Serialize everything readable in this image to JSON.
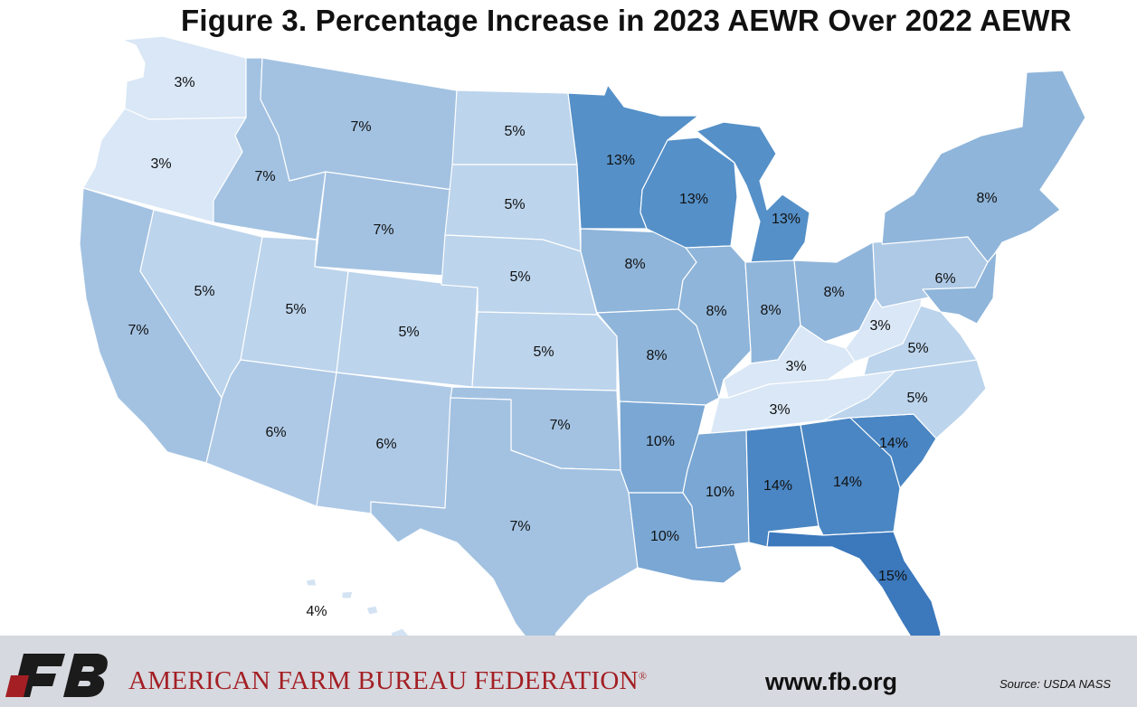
{
  "title": "Figure 3. Percentage Increase in 2023 AEWR Over 2022 AEWR",
  "colors": {
    "3": "#d9e7f6",
    "4": "#d3e3f3",
    "5": "#bcd4ec",
    "6": "#aec9e6",
    "7": "#a3c2e2",
    "8": "#8fb5da",
    "10": "#7aa7d4",
    "13": "#5590c8",
    "14": "#4a86c3",
    "15": "#3b78bc",
    "footer_bg": "#d6d9df",
    "brand_red": "#a31f24",
    "logo_dark": "#1b1b1b"
  },
  "regions": [
    {
      "id": "WA",
      "value": 3,
      "label": "3%"
    },
    {
      "id": "OR",
      "value": 3,
      "label": "3%"
    },
    {
      "id": "CA",
      "value": 7,
      "label": "7%"
    },
    {
      "id": "NV",
      "value": 5,
      "label": "5%"
    },
    {
      "id": "ID",
      "value": 7,
      "label": "7%"
    },
    {
      "id": "MT",
      "value": 7,
      "label": "7%"
    },
    {
      "id": "WY",
      "value": 7,
      "label": "7%"
    },
    {
      "id": "UT",
      "value": 5,
      "label": "5%"
    },
    {
      "id": "CO",
      "value": 5,
      "label": "5%"
    },
    {
      "id": "AZ",
      "value": 6,
      "label": "6%"
    },
    {
      "id": "NM",
      "value": 6,
      "label": "6%"
    },
    {
      "id": "ND",
      "value": 5,
      "label": "5%"
    },
    {
      "id": "SD",
      "value": 5,
      "label": "5%"
    },
    {
      "id": "NE",
      "value": 5,
      "label": "5%"
    },
    {
      "id": "KS",
      "value": 5,
      "label": "5%"
    },
    {
      "id": "OK",
      "value": 7,
      "label": "7%"
    },
    {
      "id": "TX",
      "value": 7,
      "label": "7%"
    },
    {
      "id": "MN",
      "value": 13,
      "label": "13%"
    },
    {
      "id": "IA",
      "value": 8,
      "label": "8%"
    },
    {
      "id": "MO",
      "value": 8,
      "label": "8%"
    },
    {
      "id": "AR",
      "value": 10,
      "label": "10%"
    },
    {
      "id": "LA",
      "value": 10,
      "label": "10%"
    },
    {
      "id": "WI",
      "value": 13,
      "label": "13%"
    },
    {
      "id": "IL",
      "value": 8,
      "label": "8%"
    },
    {
      "id": "MI",
      "value": 13,
      "label": "13%"
    },
    {
      "id": "IN",
      "value": 8,
      "label": "8%"
    },
    {
      "id": "OH",
      "value": 8,
      "label": "8%"
    },
    {
      "id": "KY",
      "value": 3,
      "label": "3%"
    },
    {
      "id": "TN",
      "value": 3,
      "label": "3%"
    },
    {
      "id": "MS",
      "value": 10,
      "label": "10%"
    },
    {
      "id": "AL",
      "value": 14,
      "label": "14%"
    },
    {
      "id": "GA",
      "value": 14,
      "label": "14%"
    },
    {
      "id": "FL",
      "value": 15,
      "label": "15%"
    },
    {
      "id": "SC",
      "value": 14,
      "label": "14%"
    },
    {
      "id": "NC",
      "value": 5,
      "label": "5%"
    },
    {
      "id": "VA",
      "value": 5,
      "label": "5%"
    },
    {
      "id": "WV",
      "value": 3,
      "label": "3%"
    },
    {
      "id": "PA",
      "value": 6,
      "label": "6%"
    },
    {
      "id": "NE_REGION",
      "value": 8,
      "label": "8%"
    },
    {
      "id": "HI",
      "value": 4,
      "label": "4%"
    }
  ],
  "footer": {
    "org_name": "AMERICAN FARM BUREAU FEDERATION",
    "registered_mark": "®",
    "website": "www.fb.org",
    "source": "Source: USDA NASS"
  }
}
